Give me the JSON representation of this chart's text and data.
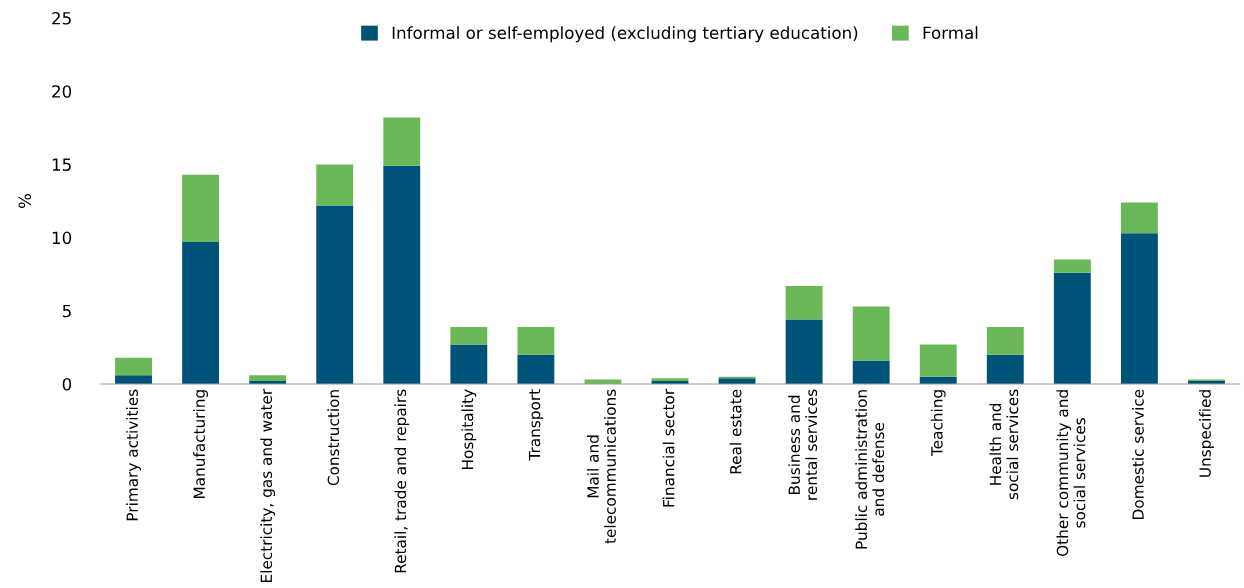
{
  "chart_data": {
    "type": "bar",
    "stacked": true,
    "ylabel": "%",
    "categories": [
      "Primary activities",
      "Manufacturing",
      "Electricity, gas and water",
      "Construction",
      "Retail, trade and repairs",
      "Hospitality",
      "Transport",
      "Mail and\ntelecommunications",
      "Financial sector",
      "Real estate",
      "Business and\nrental services",
      "Public administration\nand defense",
      "Teaching",
      "Health and\nsocial services",
      "Other community and\nsocial services",
      "Domestic service",
      "Unspecified"
    ],
    "series": [
      {
        "name": "Informal or self-employed (excluding tertiary education)",
        "color": "#005378",
        "values": [
          0.6,
          9.7,
          0.2,
          12.2,
          14.9,
          2.7,
          2.0,
          0.0,
          0.2,
          0.4,
          4.4,
          1.6,
          0.5,
          2.0,
          7.6,
          10.3,
          0.2
        ]
      },
      {
        "name": "Formal",
        "color": "#6ab857",
        "values": [
          1.2,
          4.6,
          0.4,
          2.8,
          3.3,
          1.2,
          1.9,
          0.3,
          0.2,
          0.1,
          2.3,
          3.7,
          2.2,
          1.9,
          0.9,
          2.1,
          0.1
        ]
      }
    ],
    "ylim": [
      0,
      25
    ],
    "yticks": [
      0,
      5,
      10,
      15,
      20,
      25
    ],
    "grid": false,
    "legend": "top"
  }
}
